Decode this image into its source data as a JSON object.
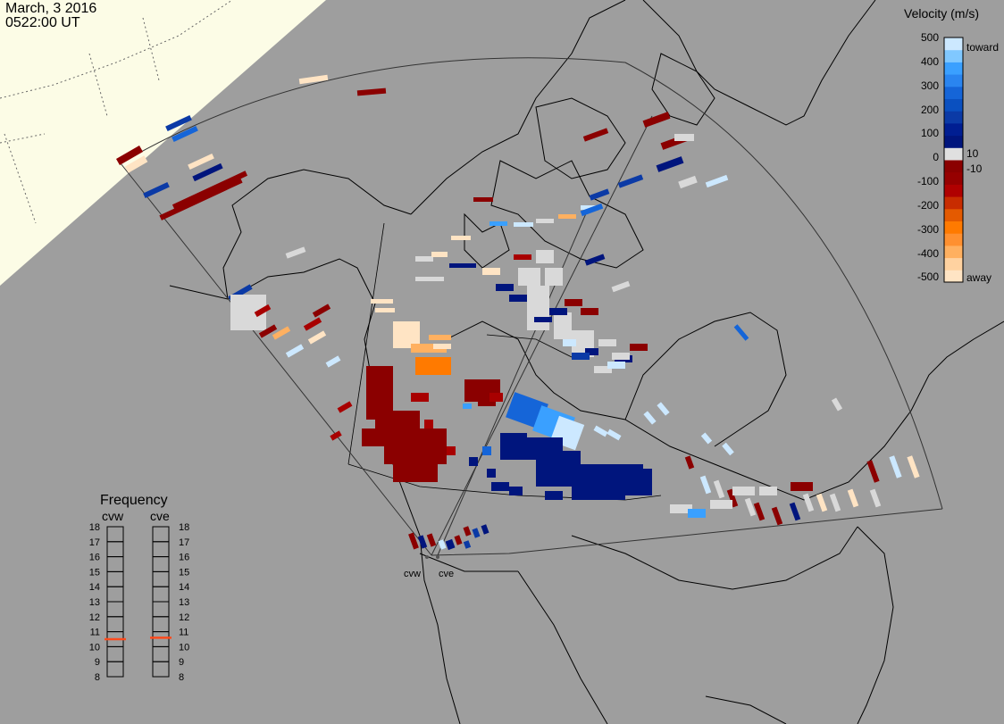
{
  "header": {
    "date": "March, 3 2016",
    "time": "0522:00 UT"
  },
  "colorbar": {
    "title": "Velocity (m/s)",
    "ticks": [
      "500",
      "400",
      "300",
      "200",
      "100",
      "0",
      "-100",
      "-200",
      "-300",
      "-400",
      "-500"
    ],
    "ticks_small": [
      "10",
      "-10"
    ],
    "toward_label": "toward",
    "away_label": "away",
    "colors": [
      "#ffe4c4",
      "#ffb060",
      "#ff7a00",
      "#d84a00",
      "#a80000",
      "#8b0000",
      "#e0e0e0",
      "#00157d",
      "#0b3aa6",
      "#1565d8",
      "#3aa0ff",
      "#cce8ff"
    ]
  },
  "frequency": {
    "title": "Frequency",
    "radars": [
      "cvw",
      "cve"
    ],
    "levels": [
      "18",
      "17",
      "16",
      "15",
      "14",
      "13",
      "12",
      "11",
      "10",
      "9",
      "8"
    ],
    "cvw_value": 10.5,
    "cve_value": 10.6,
    "marker_color": "#ff4a1c"
  },
  "sites": [
    "cvw",
    "cve"
  ],
  "colors": {
    "background": "#9e9e9e",
    "sea_ice": "#fcfce6",
    "low_velocity": "#d9d9d9"
  }
}
